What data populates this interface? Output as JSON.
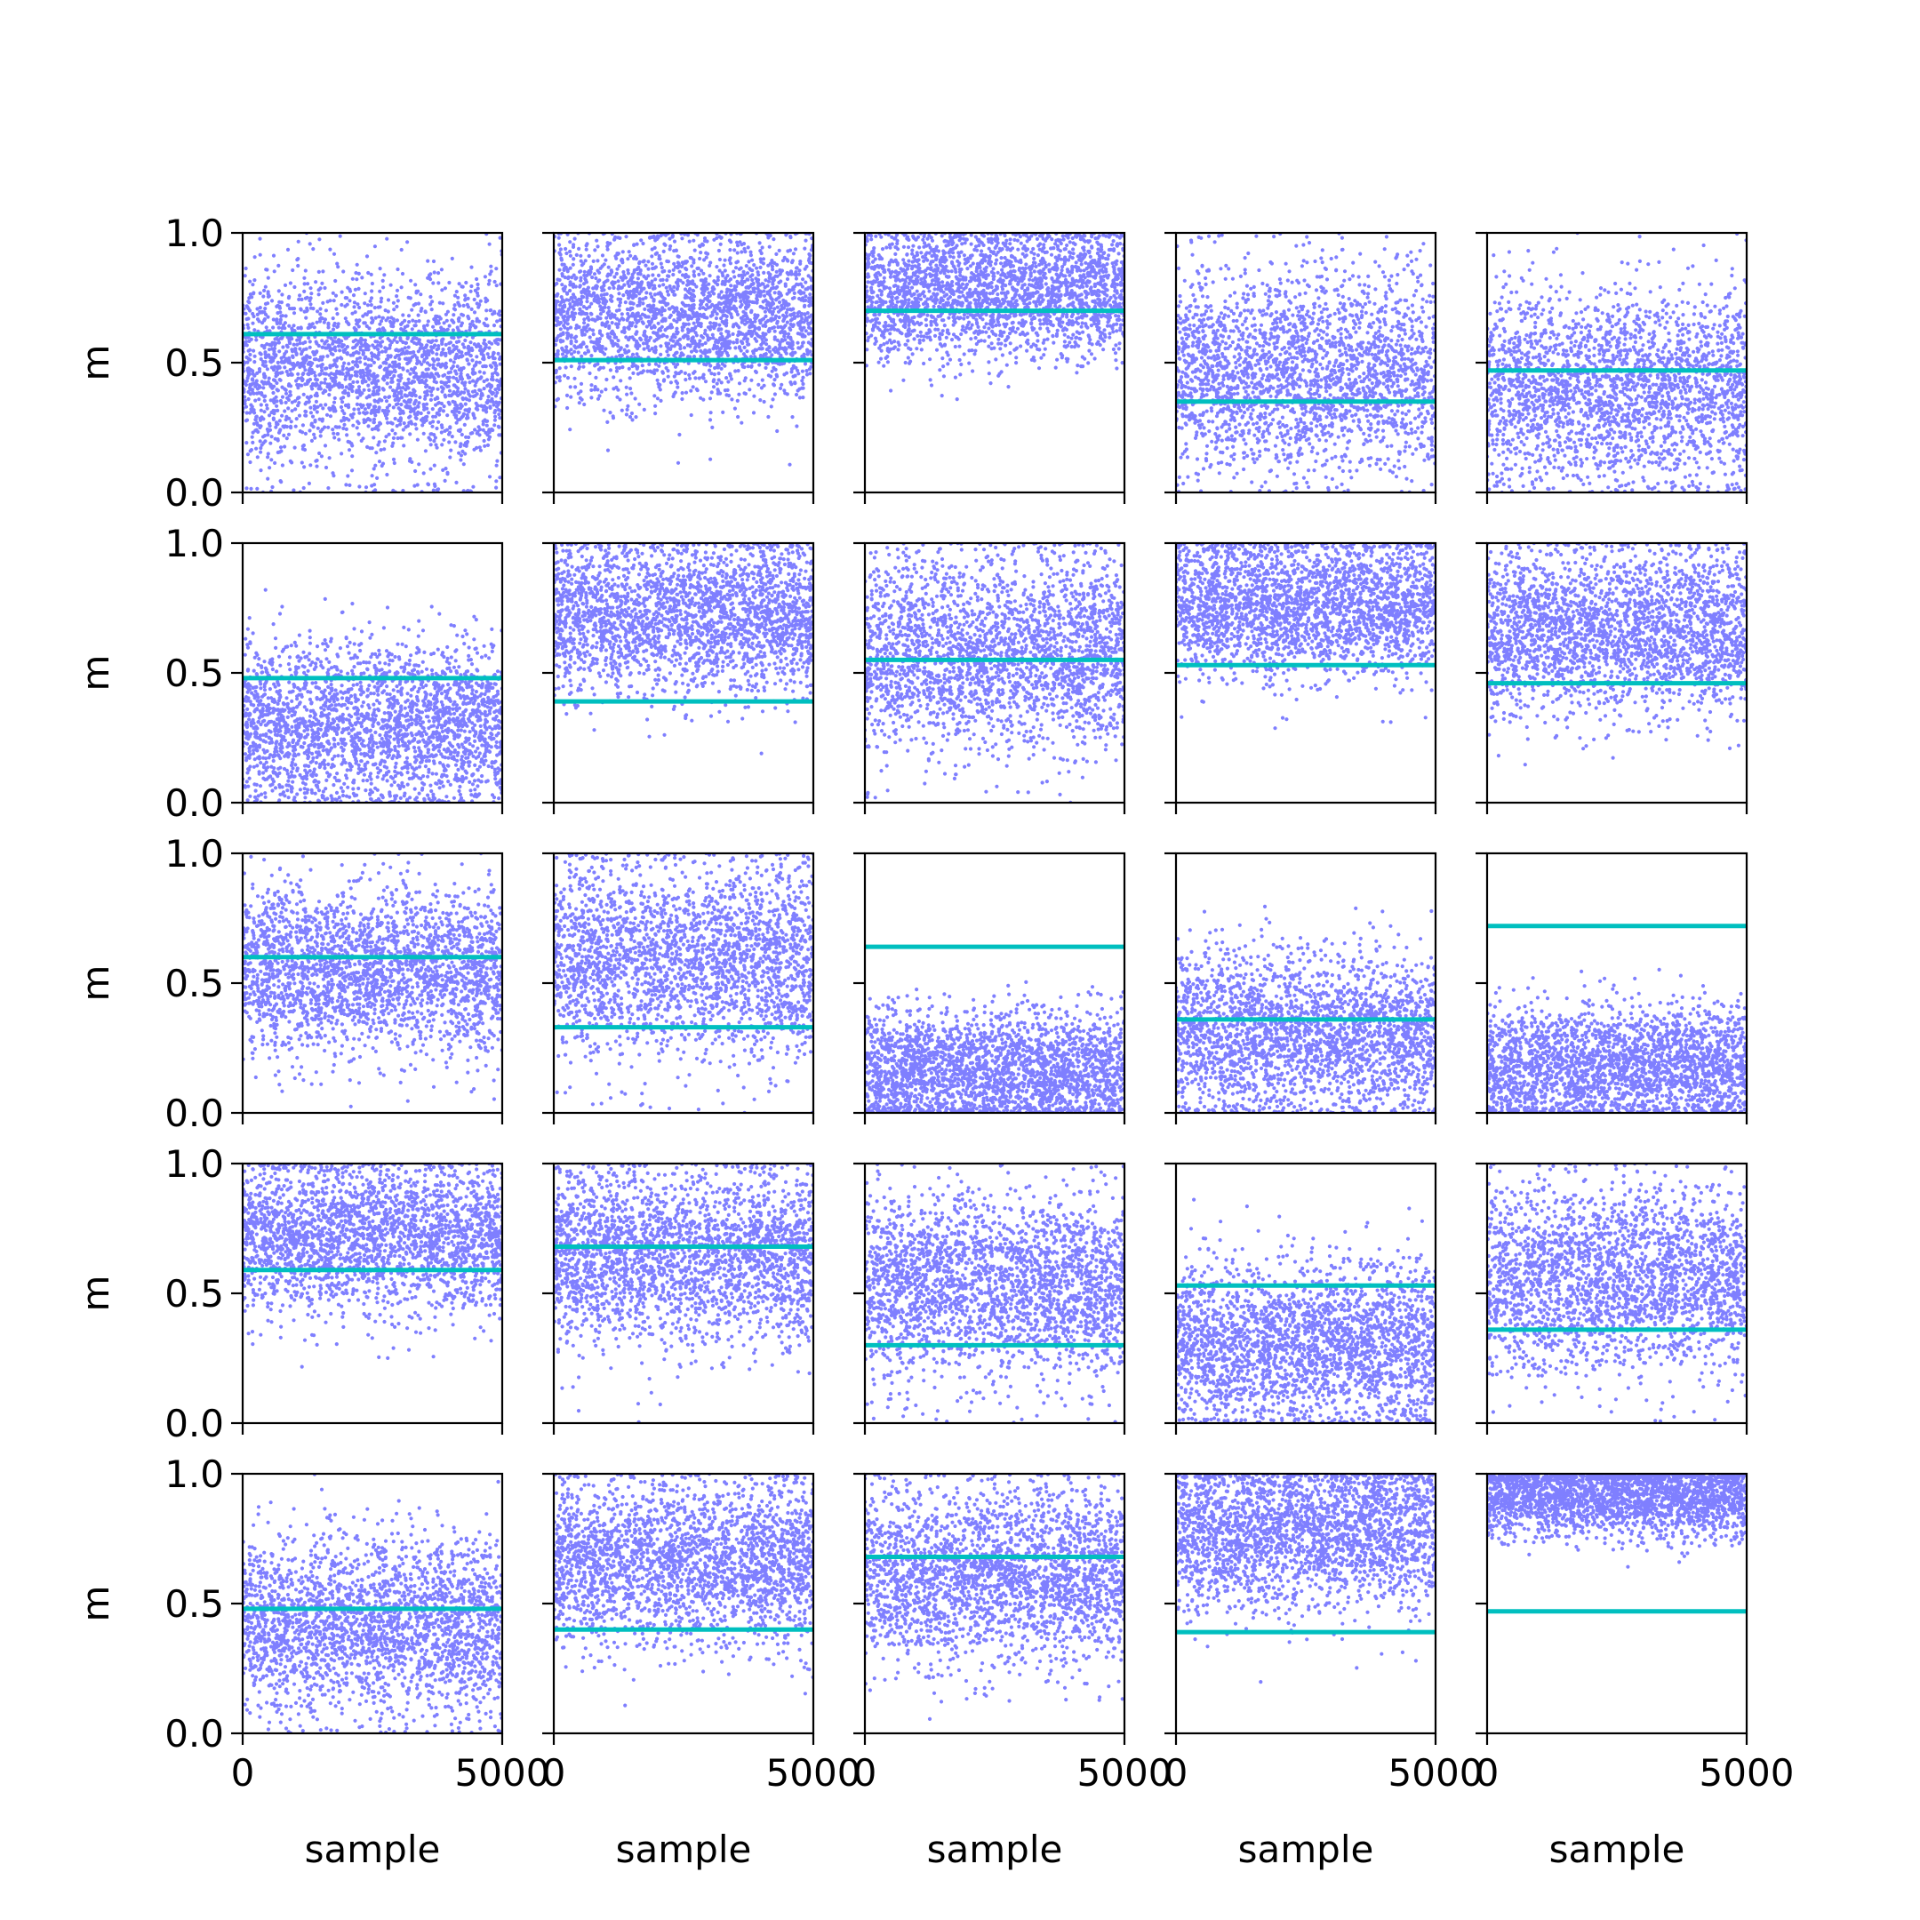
{
  "figure": {
    "rows": 5,
    "cols": 5,
    "colors": {
      "points": "#0000ff",
      "reference_line": "#00bfbf",
      "axes": "#000000",
      "background": "#ffffff"
    }
  },
  "chart_data": {
    "type": "scatter",
    "layout": "5x5 grid of subplots, shared x and y axes",
    "xlabel": "sample",
    "ylabel": "m",
    "xlim": [
      0,
      5000
    ],
    "ylim": [
      0,
      1
    ],
    "xticks": [
      0,
      5000
    ],
    "xtick_labels": [
      "0",
      "5000"
    ],
    "yticks": [
      0,
      0.5,
      1
    ],
    "ytick_labels": [
      "0.0",
      "0.5",
      "1.0"
    ],
    "grid": false,
    "legend": "none",
    "samples_per_panel": 5000,
    "point_style": "small semi-transparent blue dots",
    "panels": [
      {
        "row": 1,
        "col": 1,
        "line": 0.61,
        "cloud_center": 0.47,
        "cloud_spread": 0.19
      },
      {
        "row": 1,
        "col": 2,
        "line": 0.51,
        "cloud_center": 0.68,
        "cloud_spread": 0.16
      },
      {
        "row": 1,
        "col": 3,
        "line": 0.7,
        "cloud_center": 0.78,
        "cloud_spread": 0.13
      },
      {
        "row": 1,
        "col": 4,
        "line": 0.35,
        "cloud_center": 0.46,
        "cloud_spread": 0.19
      },
      {
        "row": 1,
        "col": 5,
        "line": 0.47,
        "cloud_center": 0.4,
        "cloud_spread": 0.19
      },
      {
        "row": 2,
        "col": 1,
        "line": 0.48,
        "cloud_center": 0.3,
        "cloud_spread": 0.16
      },
      {
        "row": 2,
        "col": 2,
        "line": 0.39,
        "cloud_center": 0.71,
        "cloud_spread": 0.15
      },
      {
        "row": 2,
        "col": 3,
        "line": 0.55,
        "cloud_center": 0.58,
        "cloud_spread": 0.19
      },
      {
        "row": 2,
        "col": 4,
        "line": 0.53,
        "cloud_center": 0.76,
        "cloud_spread": 0.14
      },
      {
        "row": 2,
        "col": 5,
        "line": 0.46,
        "cloud_center": 0.66,
        "cloud_spread": 0.16
      },
      {
        "row": 3,
        "col": 1,
        "line": 0.6,
        "cloud_center": 0.55,
        "cloud_spread": 0.16
      },
      {
        "row": 3,
        "col": 2,
        "line": 0.33,
        "cloud_center": 0.58,
        "cloud_spread": 0.19
      },
      {
        "row": 3,
        "col": 3,
        "line": 0.64,
        "cloud_center": 0.16,
        "cloud_spread": 0.12
      },
      {
        "row": 3,
        "col": 4,
        "line": 0.36,
        "cloud_center": 0.3,
        "cloud_spread": 0.16
      },
      {
        "row": 3,
        "col": 5,
        "line": 0.72,
        "cloud_center": 0.18,
        "cloud_spread": 0.12
      },
      {
        "row": 4,
        "col": 1,
        "line": 0.59,
        "cloud_center": 0.72,
        "cloud_spread": 0.15
      },
      {
        "row": 4,
        "col": 2,
        "line": 0.68,
        "cloud_center": 0.64,
        "cloud_spread": 0.17
      },
      {
        "row": 4,
        "col": 3,
        "line": 0.3,
        "cloud_center": 0.53,
        "cloud_spread": 0.18
      },
      {
        "row": 4,
        "col": 4,
        "line": 0.53,
        "cloud_center": 0.3,
        "cloud_spread": 0.16
      },
      {
        "row": 4,
        "col": 5,
        "line": 0.36,
        "cloud_center": 0.55,
        "cloud_spread": 0.18
      },
      {
        "row": 5,
        "col": 1,
        "line": 0.48,
        "cloud_center": 0.42,
        "cloud_spread": 0.17
      },
      {
        "row": 5,
        "col": 2,
        "line": 0.4,
        "cloud_center": 0.66,
        "cloud_spread": 0.16
      },
      {
        "row": 5,
        "col": 3,
        "line": 0.68,
        "cloud_center": 0.61,
        "cloud_spread": 0.17
      },
      {
        "row": 5,
        "col": 4,
        "line": 0.39,
        "cloud_center": 0.78,
        "cloud_spread": 0.15
      },
      {
        "row": 5,
        "col": 5,
        "line": 0.47,
        "cloud_center": 0.92,
        "cloud_spread": 0.08
      }
    ]
  }
}
